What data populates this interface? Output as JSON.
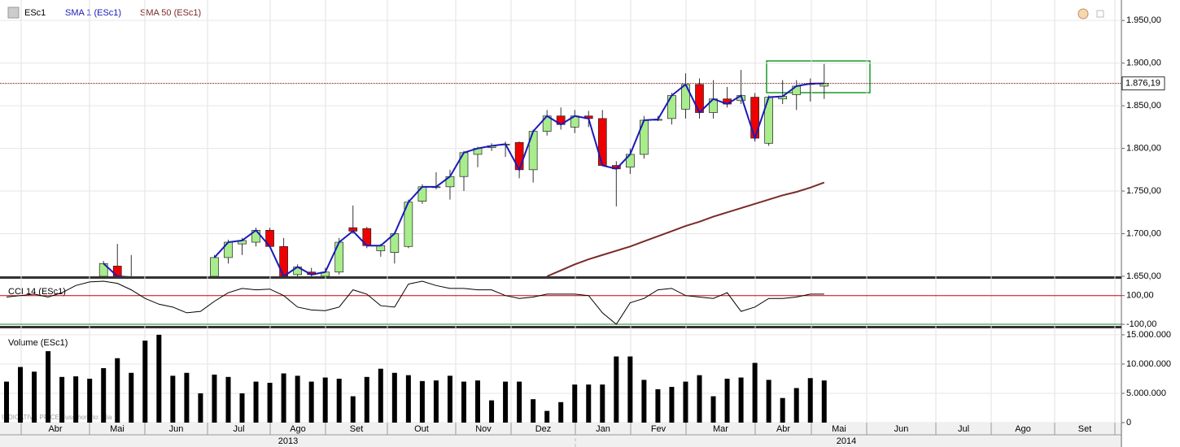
{
  "legend": {
    "symbol": "ESc1",
    "sma1": "SMA 1 (ESc1)",
    "sma50": "SMA 50 (ESc1)",
    "cci": "CCI 14 (ESc1)",
    "volume": "Volume (ESc1)",
    "footnote": "INDICATIVE PRICE  Fuso horário: Mia"
  },
  "months": [
    "Abr",
    "Mai",
    "Jun",
    "Jul",
    "Ago",
    "Set",
    "Out",
    "Nov",
    "Dez",
    "Jan",
    "Fev",
    "Mar",
    "Abr",
    "Mai",
    "Jun",
    "Jul",
    "Ago",
    "Set"
  ],
  "years": [
    "2013",
    "2014"
  ],
  "chart_data": [
    {
      "type": "candlestick",
      "ylim": [
        1650,
        1974
      ],
      "yticks": [
        {
          "value": 1950,
          "label": "1.950,00"
        },
        {
          "value": 1900,
          "label": "1.900,00"
        },
        {
          "value": 1850,
          "label": "1.850,00"
        },
        {
          "value": 1800,
          "label": "1.800,00"
        },
        {
          "value": 1750,
          "label": "1.750,00"
        },
        {
          "value": 1700,
          "label": "1.700,00"
        },
        {
          "value": 1650,
          "label": "1.650,00"
        }
      ],
      "last_price": {
        "value": 1876.19,
        "label": "1.876,19"
      },
      "up_color": "#a8ec8c",
      "down_color": "#ee0000",
      "open": [
        null,
        null,
        null,
        null,
        null,
        null,
        null,
        1650,
        1662,
        1648,
        null,
        null,
        null,
        null,
        null,
        1650,
        1672,
        1688,
        1690,
        1704,
        1685,
        1652,
        1655,
        1650,
        1655,
        1707,
        1706,
        1680,
        1678,
        1685,
        1738,
        1755,
        1755,
        1767,
        1793,
        1801,
        1805,
        1807,
        1775,
        1820,
        1838,
        1825,
        1838,
        1835,
        1780,
        1778,
        1793,
        1833,
        1835,
        1846,
        1875,
        1842,
        1858,
        1856,
        1860,
        1806,
        1858,
        1863,
        1875,
        1873
      ],
      "high": [
        null,
        null,
        null,
        null,
        null,
        null,
        null,
        1668,
        1688,
        1675,
        null,
        null,
        null,
        null,
        null,
        1675,
        1693,
        1695,
        1707,
        1707,
        1695,
        1664,
        1660,
        1660,
        1695,
        1733,
        1708,
        1688,
        1702,
        1740,
        1758,
        1772,
        1775,
        1797,
        1802,
        1806,
        1808,
        1808,
        1822,
        1845,
        1848,
        1845,
        1844,
        1845,
        1785,
        1800,
        1838,
        1838,
        1865,
        1888,
        1882,
        1880,
        1872,
        1892,
        1865,
        1862,
        1880,
        1880,
        1882,
        1899
      ],
      "low": [
        null,
        null,
        null,
        null,
        null,
        null,
        null,
        1640,
        1640,
        1640,
        null,
        null,
        null,
        null,
        null,
        1645,
        1665,
        1675,
        1685,
        1688,
        1645,
        1645,
        1645,
        1645,
        1652,
        1700,
        1683,
        1673,
        1665,
        1683,
        1735,
        1752,
        1740,
        1750,
        1778,
        1797,
        1790,
        1765,
        1760,
        1815,
        1822,
        1818,
        1825,
        1780,
        1732,
        1770,
        1788,
        1832,
        1828,
        1835,
        1835,
        1835,
        1848,
        1852,
        1808,
        1803,
        1852,
        1845,
        1855,
        1858
      ],
      "close": [
        null,
        null,
        null,
        null,
        null,
        null,
        null,
        1665,
        1650,
        1649,
        null,
        null,
        null,
        null,
        null,
        1672,
        1690,
        1692,
        1704,
        1685,
        1650,
        1661,
        1652,
        1655,
        1690,
        1703,
        1686,
        1686,
        1700,
        1737,
        1755,
        1755,
        1767,
        1795,
        1800,
        1803,
        1805,
        1775,
        1820,
        1838,
        1828,
        1838,
        1835,
        1780,
        1776,
        1793,
        1833,
        1834,
        1862,
        1875,
        1842,
        1858,
        1852,
        1862,
        1812,
        1860,
        1861,
        1873,
        1876,
        1876.19
      ],
      "series": [
        {
          "name": "SMA 1 (ESc1)",
          "color": "#1a1ab8",
          "values": [
            null,
            null,
            null,
            null,
            null,
            null,
            null,
            1665,
            1650,
            1649,
            null,
            null,
            null,
            null,
            null,
            1672,
            1690,
            1692,
            1704,
            1685,
            1650,
            1661,
            1652,
            1655,
            1690,
            1703,
            1686,
            1686,
            1700,
            1737,
            1755,
            1755,
            1767,
            1795,
            1800,
            1803,
            1805,
            1775,
            1820,
            1838,
            1828,
            1838,
            1835,
            1780,
            1776,
            1793,
            1833,
            1834,
            1862,
            1875,
            1842,
            1858,
            1852,
            1862,
            1812,
            1860,
            1861,
            1873,
            1876,
            1876.19
          ]
        },
        {
          "name": "SMA 50 (ESc1)",
          "color": "#7a2a2a",
          "values": [
            null,
            null,
            null,
            null,
            null,
            null,
            null,
            null,
            null,
            null,
            null,
            null,
            null,
            null,
            null,
            null,
            null,
            null,
            null,
            null,
            null,
            null,
            null,
            null,
            null,
            null,
            null,
            null,
            null,
            null,
            null,
            null,
            null,
            null,
            null,
            null,
            null,
            null,
            null,
            1650,
            1657,
            1664,
            1670,
            1675,
            1680,
            1685,
            1691,
            1697,
            1703,
            1709,
            1714,
            1720,
            1725,
            1730,
            1735,
            1740,
            1745,
            1749,
            1754,
            1760
          ]
        }
      ]
    },
    {
      "type": "line",
      "ylim": [
        -111,
        217
      ],
      "yticks": [
        {
          "value": 100,
          "label": "100,00"
        },
        {
          "value": -100,
          "label": "-100,00"
        }
      ],
      "series": [
        {
          "name": "CCI 14 (ESc1)",
          "color": "#000000",
          "values": [
            90,
            100,
            110,
            90,
            120,
            170,
            195,
            200,
            185,
            140,
            80,
            40,
            20,
            -20,
            -10,
            60,
            120,
            150,
            140,
            145,
            100,
            20,
            0,
            -5,
            20,
            140,
            110,
            30,
            20,
            180,
            200,
            170,
            150,
            150,
            140,
            140,
            100,
            80,
            90,
            110,
            110,
            110,
            100,
            -20,
            -100,
            50,
            80,
            140,
            150,
            100,
            90,
            80,
            120,
            -10,
            20,
            80,
            80,
            90,
            110,
            110
          ]
        }
      ]
    },
    {
      "type": "bar",
      "ylim": [
        0,
        16100000
      ],
      "color": "#000000",
      "yticks": [
        {
          "value": 15000000,
          "label": "15.000.000"
        },
        {
          "value": 10000000,
          "label": "10.000.000"
        },
        {
          "value": 5000000,
          "label": "5.000.000"
        },
        0
      ],
      "values": [
        7000000,
        9500000,
        8700000,
        12200000,
        7800000,
        7900000,
        7500000,
        9300000,
        11000000,
        8500000,
        14000000,
        15000000,
        8000000,
        8500000,
        5000000,
        8200000,
        7800000,
        5000000,
        7000000,
        6800000,
        8400000,
        8000000,
        7000000,
        7700000,
        7500000,
        4500000,
        7800000,
        9200000,
        8500000,
        8100000,
        7100000,
        7200000,
        8000000,
        7000000,
        7200000,
        3800000,
        7000000,
        7000000,
        4000000,
        2000000,
        3500000,
        6500000,
        6500000,
        6500000,
        11300000,
        11300000,
        7300000,
        5700000,
        6100000,
        7000000,
        8100000,
        4500000,
        7500000,
        7700000,
        10200000,
        7300000,
        4200000,
        5900000,
        7600000,
        7200000
      ]
    }
  ]
}
